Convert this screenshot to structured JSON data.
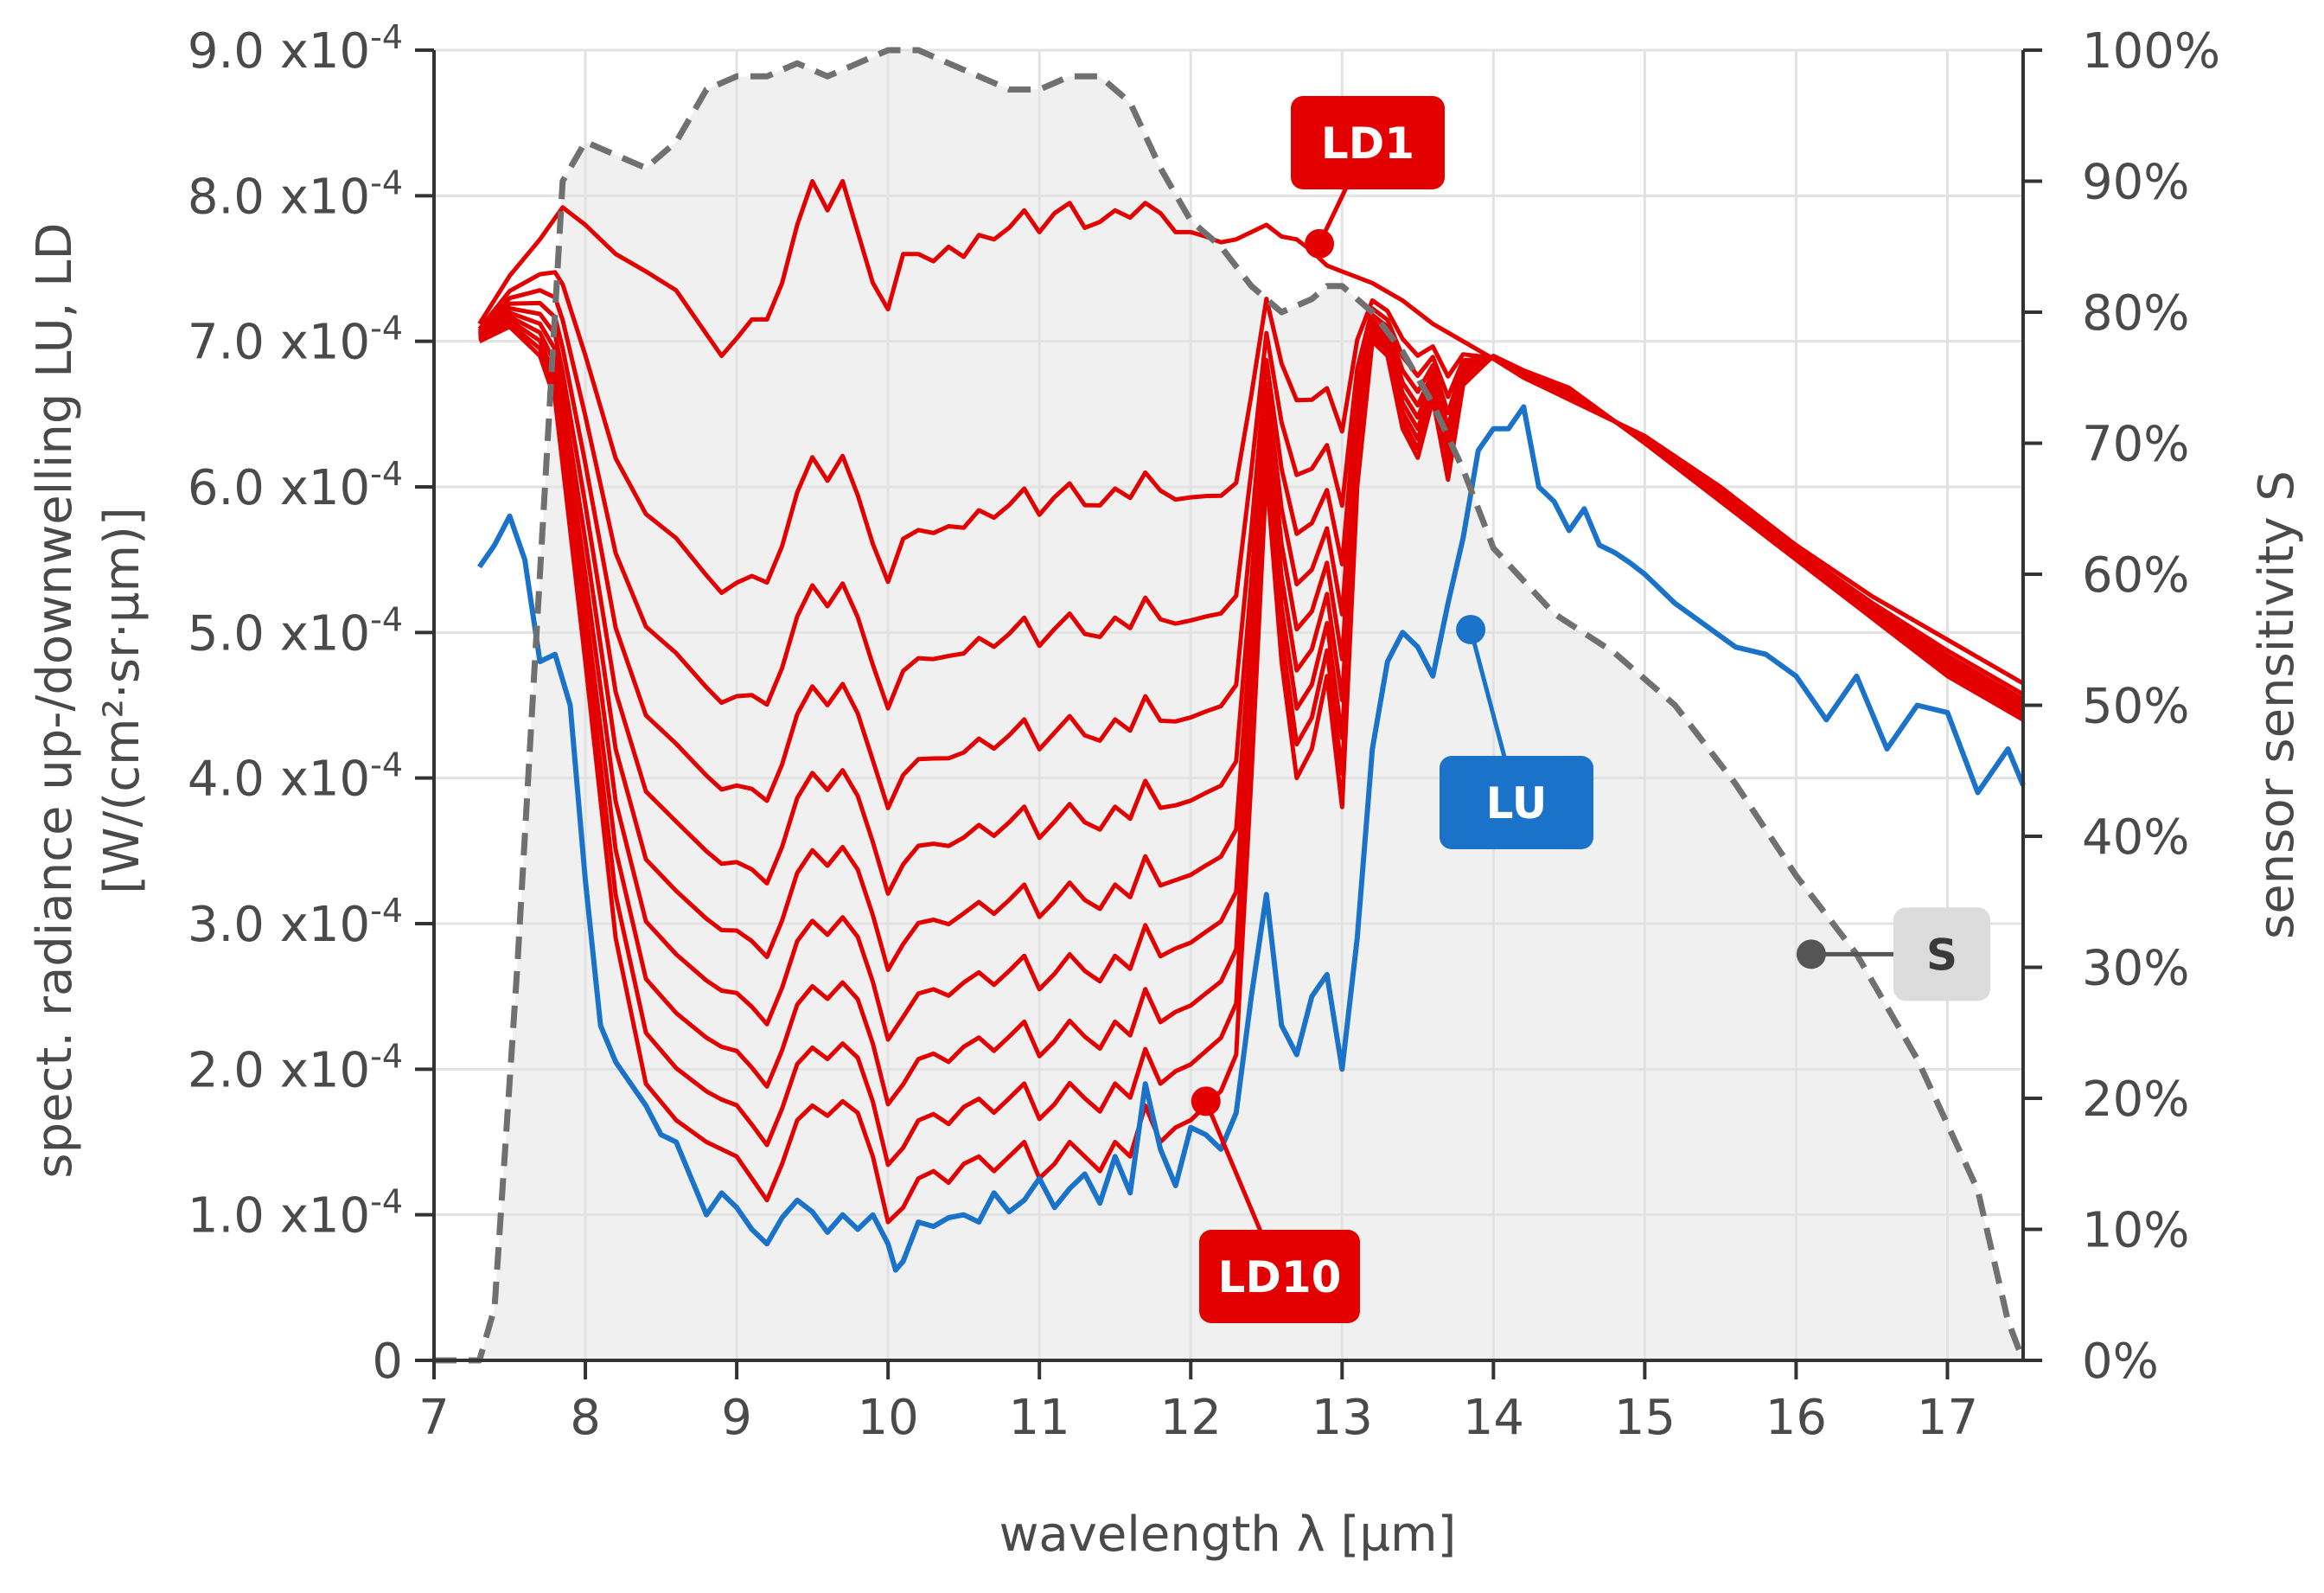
{
  "chart_data": {
    "type": "line",
    "xlabel": "wavelength λ [µm]",
    "ylabel_line1": "spect. radiance up-/downwelling  LU, LD",
    "ylabel_line2": "[W/(cm²·sr·µm)]",
    "y2label": "sensor sensitivity S",
    "xlim": [
      7,
      17.5
    ],
    "ylim": [
      0,
      0.0009
    ],
    "y2lim": [
      0,
      100
    ],
    "grid": true,
    "x_ticks": [
      {
        "value": 7,
        "label": "7"
      },
      {
        "value": 8,
        "label": "8"
      },
      {
        "value": 9,
        "label": "9"
      },
      {
        "value": 10,
        "label": "10"
      },
      {
        "value": 11,
        "label": "11"
      },
      {
        "value": 12,
        "label": "12"
      },
      {
        "value": 13,
        "label": "13"
      },
      {
        "value": 14,
        "label": "14"
      },
      {
        "value": 15,
        "label": "15"
      },
      {
        "value": 16,
        "label": "16"
      },
      {
        "value": 17,
        "label": "17"
      }
    ],
    "y_ticks": [
      {
        "value": 0,
        "mantissa": "0",
        "exp": ""
      },
      {
        "value": 0.0001,
        "mantissa": "1.0 x10",
        "exp": "-4"
      },
      {
        "value": 0.0002,
        "mantissa": "2.0 x10",
        "exp": "-4"
      },
      {
        "value": 0.0003,
        "mantissa": "3.0 x10",
        "exp": "-4"
      },
      {
        "value": 0.0004,
        "mantissa": "4.0 x10",
        "exp": "-4"
      },
      {
        "value": 0.0005,
        "mantissa": "5.0 x10",
        "exp": "-4"
      },
      {
        "value": 0.0006,
        "mantissa": "6.0 x10",
        "exp": "-4"
      },
      {
        "value": 0.0007,
        "mantissa": "7.0 x10",
        "exp": "-4"
      },
      {
        "value": 0.0008,
        "mantissa": "8.0 x10",
        "exp": "-4"
      },
      {
        "value": 0.0009,
        "mantissa": "9.0 x10",
        "exp": "-4"
      }
    ],
    "y2_ticks": [
      {
        "value": 0,
        "label": "0%"
      },
      {
        "value": 10,
        "label": "10%"
      },
      {
        "value": 20,
        "label": "20%"
      },
      {
        "value": 30,
        "label": "30%"
      },
      {
        "value": 40,
        "label": "40%"
      },
      {
        "value": 50,
        "label": "50%"
      },
      {
        "value": 60,
        "label": "60%"
      },
      {
        "value": 70,
        "label": "70%"
      },
      {
        "value": 80,
        "label": "80%"
      },
      {
        "value": 90,
        "label": "90%"
      },
      {
        "value": 100,
        "label": "100%"
      }
    ],
    "colors": {
      "ld": "#e30000",
      "lu": "#1a73c9",
      "s": "#707070",
      "s_fill": "#f0f0f0",
      "grid": "#e2e2e2",
      "axis": "#333333",
      "label_s_bg": "#dcdcdc"
    },
    "series": [
      {
        "name": "LD1",
        "label": "LD1",
        "x": [
          7.3,
          7.5,
          7.7,
          7.85,
          8.0,
          8.2,
          8.4,
          8.6,
          8.8,
          8.9,
          9.0,
          9.1,
          9.2,
          9.3,
          9.4,
          9.5,
          9.6,
          9.7,
          9.8,
          9.9,
          10.0,
          10.1,
          10.2,
          10.3,
          10.4,
          10.5,
          10.6,
          10.7,
          10.8,
          10.9,
          11.0,
          11.1,
          11.2,
          11.3,
          11.4,
          11.5,
          11.6,
          11.7,
          11.8,
          11.9,
          12.0,
          12.1,
          12.2,
          12.3,
          12.4,
          12.5,
          12.6,
          12.7,
          12.8,
          12.9,
          13.0,
          13.2,
          13.4,
          13.6,
          13.8,
          14.0,
          14.2,
          14.5,
          15.0,
          15.5,
          16.0,
          16.5,
          17.0,
          17.5
        ],
        "y": [
          0.000712,
          0.000745,
          0.00077,
          0.000792,
          0.00078,
          0.00076,
          0.000748,
          0.000735,
          0.000705,
          0.00069,
          0.000702,
          0.000715,
          0.000715,
          0.00074,
          0.00078,
          0.00081,
          0.00079,
          0.00081,
          0.000775,
          0.00074,
          0.000722,
          0.00076,
          0.00076,
          0.000755,
          0.000765,
          0.000758,
          0.000773,
          0.00077,
          0.000778,
          0.00079,
          0.000775,
          0.000788,
          0.000795,
          0.000778,
          0.000782,
          0.00079,
          0.000785,
          0.000795,
          0.000788,
          0.000775,
          0.000775,
          0.000772,
          0.000768,
          0.00077,
          0.000775,
          0.00078,
          0.000772,
          0.00077,
          0.000762,
          0.000752,
          0.000748,
          0.00074,
          0.000728,
          0.000712,
          0.0007,
          0.000688,
          0.000675,
          0.00066,
          0.000635,
          0.0006,
          0.00056,
          0.000525,
          0.000495,
          0.000465
        ]
      },
      {
        "name": "LD10",
        "label": "LD10",
        "x": [
          7.3,
          7.5,
          7.7,
          7.8,
          8.0,
          8.2,
          8.4,
          8.6,
          8.8,
          9.0,
          9.1,
          9.2,
          9.3,
          9.4,
          9.5,
          9.6,
          9.7,
          9.8,
          9.9,
          10.0,
          10.1,
          10.2,
          10.3,
          10.4,
          10.5,
          10.6,
          10.7,
          10.8,
          10.9,
          11.0,
          11.1,
          11.2,
          11.3,
          11.4,
          11.5,
          11.6,
          11.7,
          11.8,
          11.9,
          12.0,
          12.1,
          12.2,
          12.3,
          12.4,
          12.5,
          12.6,
          12.7,
          12.8,
          12.9,
          13.0,
          13.1,
          13.2,
          13.3,
          13.4,
          13.5,
          13.6,
          13.7,
          13.8,
          14.0,
          14.2,
          14.5,
          15.0,
          15.5,
          16.0,
          16.5,
          17.0,
          17.5
        ],
        "y": [
          0.0007,
          0.00071,
          0.00069,
          0.00066,
          0.00048,
          0.00029,
          0.00019,
          0.000165,
          0.00015,
          0.00014,
          0.000125,
          0.00011,
          0.000135,
          0.000165,
          0.000175,
          0.000168,
          0.000178,
          0.00017,
          0.00014,
          9.5e-05,
          0.000105,
          0.000125,
          0.00013,
          0.000122,
          0.000135,
          0.00014,
          0.00013,
          0.00014,
          0.00015,
          0.000125,
          0.000135,
          0.00015,
          0.00014,
          0.00013,
          0.00015,
          0.00014,
          0.000175,
          0.00015,
          0.00016,
          0.000165,
          0.000175,
          0.000185,
          0.00021,
          0.0004,
          0.00061,
          0.00048,
          0.0004,
          0.00042,
          0.00047,
          0.00038,
          0.0006,
          0.0007,
          0.00069,
          0.00064,
          0.00062,
          0.00066,
          0.000605,
          0.00067,
          0.00069,
          0.00068,
          0.000668,
          0.00063,
          0.00059,
          0.00055,
          0.00051,
          0.00047,
          0.00044
        ]
      },
      {
        "name": "LU",
        "label": "LU",
        "x": [
          7.3,
          7.4,
          7.5,
          7.6,
          7.7,
          7.8,
          7.9,
          8.0,
          8.1,
          8.2,
          8.3,
          8.4,
          8.5,
          8.6,
          8.7,
          8.8,
          8.9,
          9.0,
          9.1,
          9.2,
          9.3,
          9.4,
          9.5,
          9.6,
          9.7,
          9.8,
          9.9,
          10.0,
          10.05,
          10.1,
          10.2,
          10.3,
          10.4,
          10.5,
          10.6,
          10.7,
          10.8,
          10.9,
          11.0,
          11.1,
          11.2,
          11.3,
          11.4,
          11.5,
          11.6,
          11.7,
          11.8,
          11.9,
          12.0,
          12.1,
          12.2,
          12.3,
          12.4,
          12.5,
          12.6,
          12.7,
          12.8,
          12.9,
          13.0,
          13.1,
          13.2,
          13.3,
          13.4,
          13.5,
          13.6,
          13.7,
          13.8,
          13.9,
          14.0,
          14.1,
          14.2,
          14.3,
          14.4,
          14.5,
          14.6,
          14.7,
          14.8,
          14.9,
          15.0,
          15.2,
          15.4,
          15.6,
          15.8,
          16.0,
          16.2,
          16.4,
          16.6,
          16.8,
          17.0,
          17.2,
          17.4,
          17.5
        ],
        "y": [
          0.000545,
          0.00056,
          0.00058,
          0.00055,
          0.00048,
          0.000485,
          0.00045,
          0.00033,
          0.00023,
          0.000205,
          0.00019,
          0.000175,
          0.000155,
          0.00015,
          0.000125,
          0.0001,
          0.000115,
          0.000105,
          9e-05,
          8e-05,
          9.8e-05,
          0.00011,
          0.000102,
          8.8e-05,
          0.0001,
          9e-05,
          0.0001,
          8e-05,
          6.2e-05,
          6.8e-05,
          9.5e-05,
          9.2e-05,
          9.8e-05,
          0.0001,
          9.5e-05,
          0.000115,
          0.000102,
          0.00011,
          0.000125,
          0.000105,
          0.000118,
          0.000128,
          0.000108,
          0.00014,
          0.000115,
          0.00019,
          0.000145,
          0.00012,
          0.00016,
          0.000155,
          0.000145,
          0.00017,
          0.00025,
          0.00032,
          0.00023,
          0.00021,
          0.00025,
          0.000265,
          0.0002,
          0.00029,
          0.00042,
          0.00048,
          0.0005,
          0.00049,
          0.00047,
          0.00052,
          0.000565,
          0.000625,
          0.00064,
          0.00064,
          0.000655,
          0.0006,
          0.00059,
          0.00057,
          0.000585,
          0.00056,
          0.000555,
          0.000548,
          0.00054,
          0.00052,
          0.000505,
          0.00049,
          0.000485,
          0.00047,
          0.00044,
          0.00047,
          0.00042,
          0.00045,
          0.000445,
          0.00039,
          0.00042,
          0.000395
        ]
      }
    ],
    "intermediate_ld_curves": 8,
    "sensitivity": {
      "name": "S",
      "label": "S",
      "x": [
        7.0,
        7.3,
        7.4,
        7.55,
        7.7,
        7.8,
        7.85,
        8.0,
        8.2,
        8.4,
        8.6,
        8.8,
        9.0,
        9.2,
        9.4,
        9.6,
        9.8,
        10.0,
        10.2,
        10.4,
        10.6,
        10.8,
        11.0,
        11.2,
        11.4,
        11.6,
        11.8,
        12.0,
        12.2,
        12.4,
        12.6,
        12.8,
        12.9,
        13.0,
        13.2,
        13.4,
        13.6,
        13.8,
        14.0,
        14.4,
        14.8,
        15.2,
        15.6,
        16.0,
        16.4,
        16.8,
        17.2,
        17.4,
        17.5
      ],
      "y": [
        0,
        0,
        4,
        30,
        60,
        80,
        90,
        93,
        92,
        91,
        93,
        97,
        98,
        98,
        99,
        98,
        99,
        100,
        100,
        99,
        98,
        97,
        97,
        98,
        98,
        96,
        91,
        87,
        85,
        82,
        80,
        81,
        82,
        82,
        80,
        77,
        73,
        68,
        62,
        57,
        54,
        50,
        44,
        37,
        31,
        23,
        13,
        3,
        0
      ]
    },
    "annotations": [
      {
        "text": "LD1",
        "target_series": "LD1",
        "target_x": 12.85,
        "target_y": 0.000767
      },
      {
        "text": "LU",
        "target_series": "LU",
        "target_x": 13.85,
        "target_y": 0.000502
      },
      {
        "text": "LD10",
        "target_series": "LD10",
        "target_x": 12.1,
        "target_y": 0.000178
      },
      {
        "text": "S",
        "target_series": "S",
        "target_x": 16.1,
        "target_y_pct": 31
      }
    ]
  }
}
